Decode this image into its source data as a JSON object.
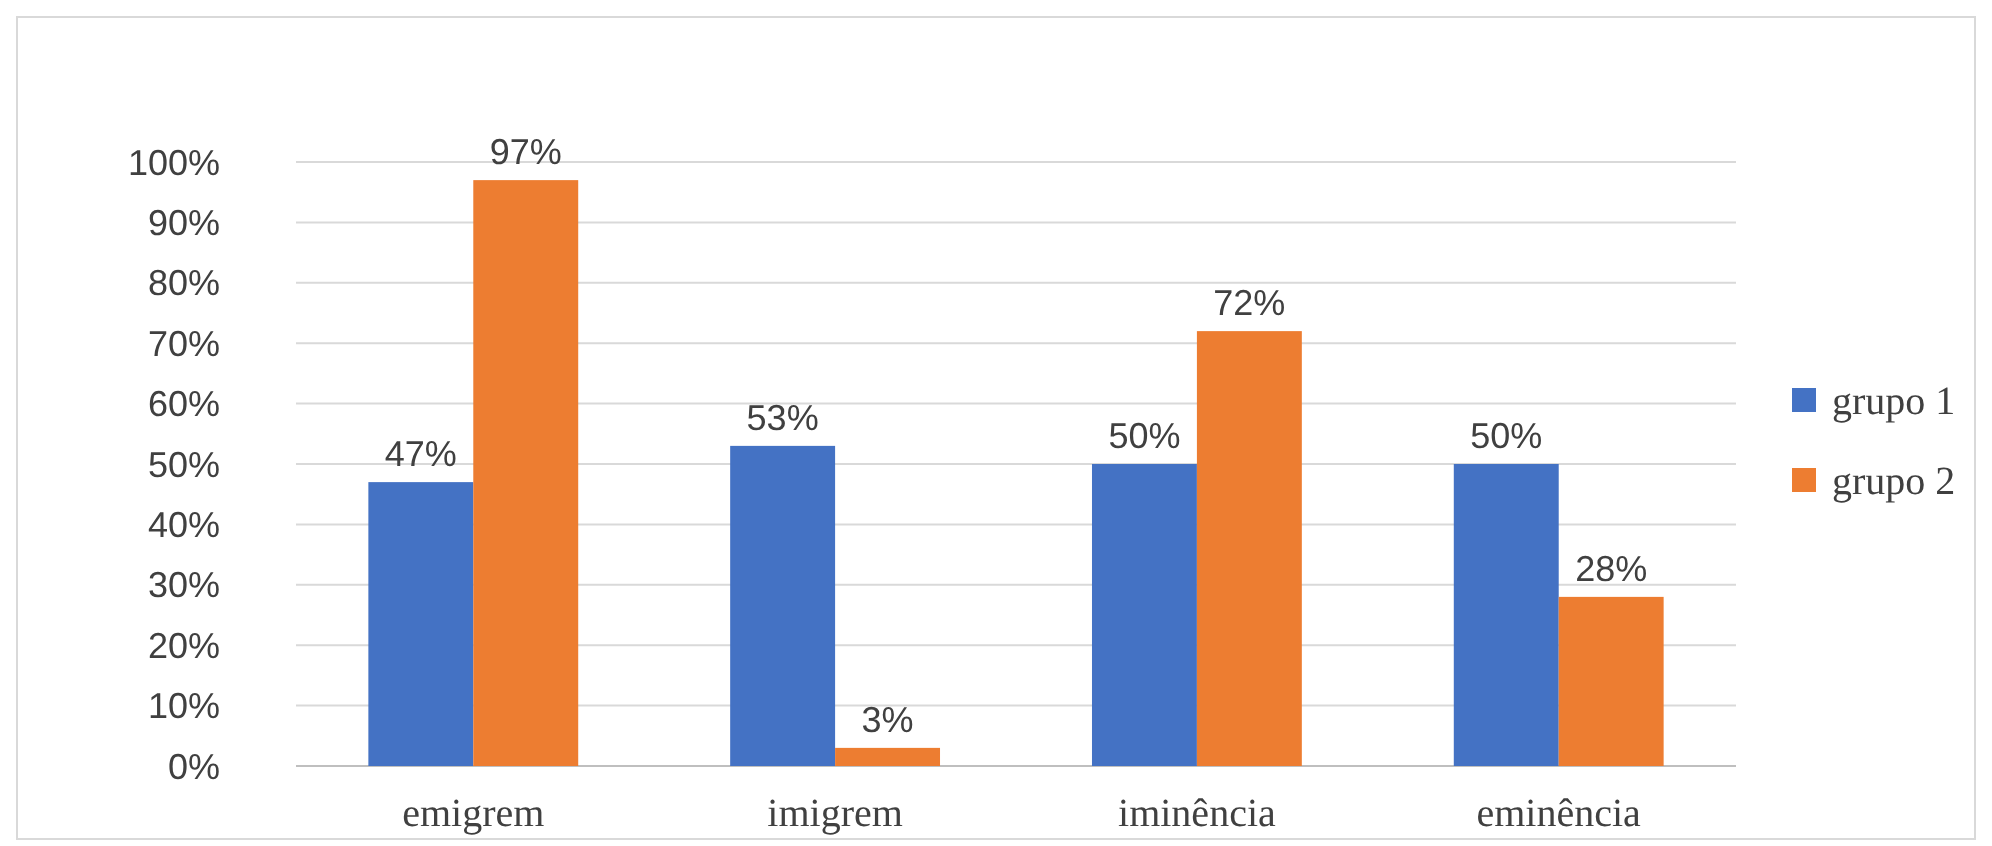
{
  "chart_data": {
    "type": "bar",
    "categories": [
      "emigrem",
      "imigrem",
      "iminência",
      "eminência"
    ],
    "series": [
      {
        "name": "grupo 1",
        "color": "#4472c4",
        "values": [
          47,
          53,
          50,
          50
        ],
        "value_labels": [
          "47%",
          "53%",
          "50%",
          "50%"
        ]
      },
      {
        "name": "grupo 2",
        "color": "#ed7d31",
        "values": [
          97,
          3,
          72,
          28
        ],
        "value_labels": [
          "97%",
          "3%",
          "72%",
          "28%"
        ]
      }
    ],
    "ylim": [
      0,
      100
    ],
    "yticks": [
      {
        "value": 0,
        "label": "0%"
      },
      {
        "value": 10,
        "label": "10%"
      },
      {
        "value": 20,
        "label": "20%"
      },
      {
        "value": 30,
        "label": "30%"
      },
      {
        "value": 40,
        "label": "40%"
      },
      {
        "value": 50,
        "label": "50%"
      },
      {
        "value": 60,
        "label": "60%"
      },
      {
        "value": 70,
        "label": "70%"
      },
      {
        "value": 80,
        "label": "80%"
      },
      {
        "value": 90,
        "label": "90%"
      },
      {
        "value": 100,
        "label": "100%"
      }
    ],
    "grid": "y",
    "legend": "right"
  }
}
